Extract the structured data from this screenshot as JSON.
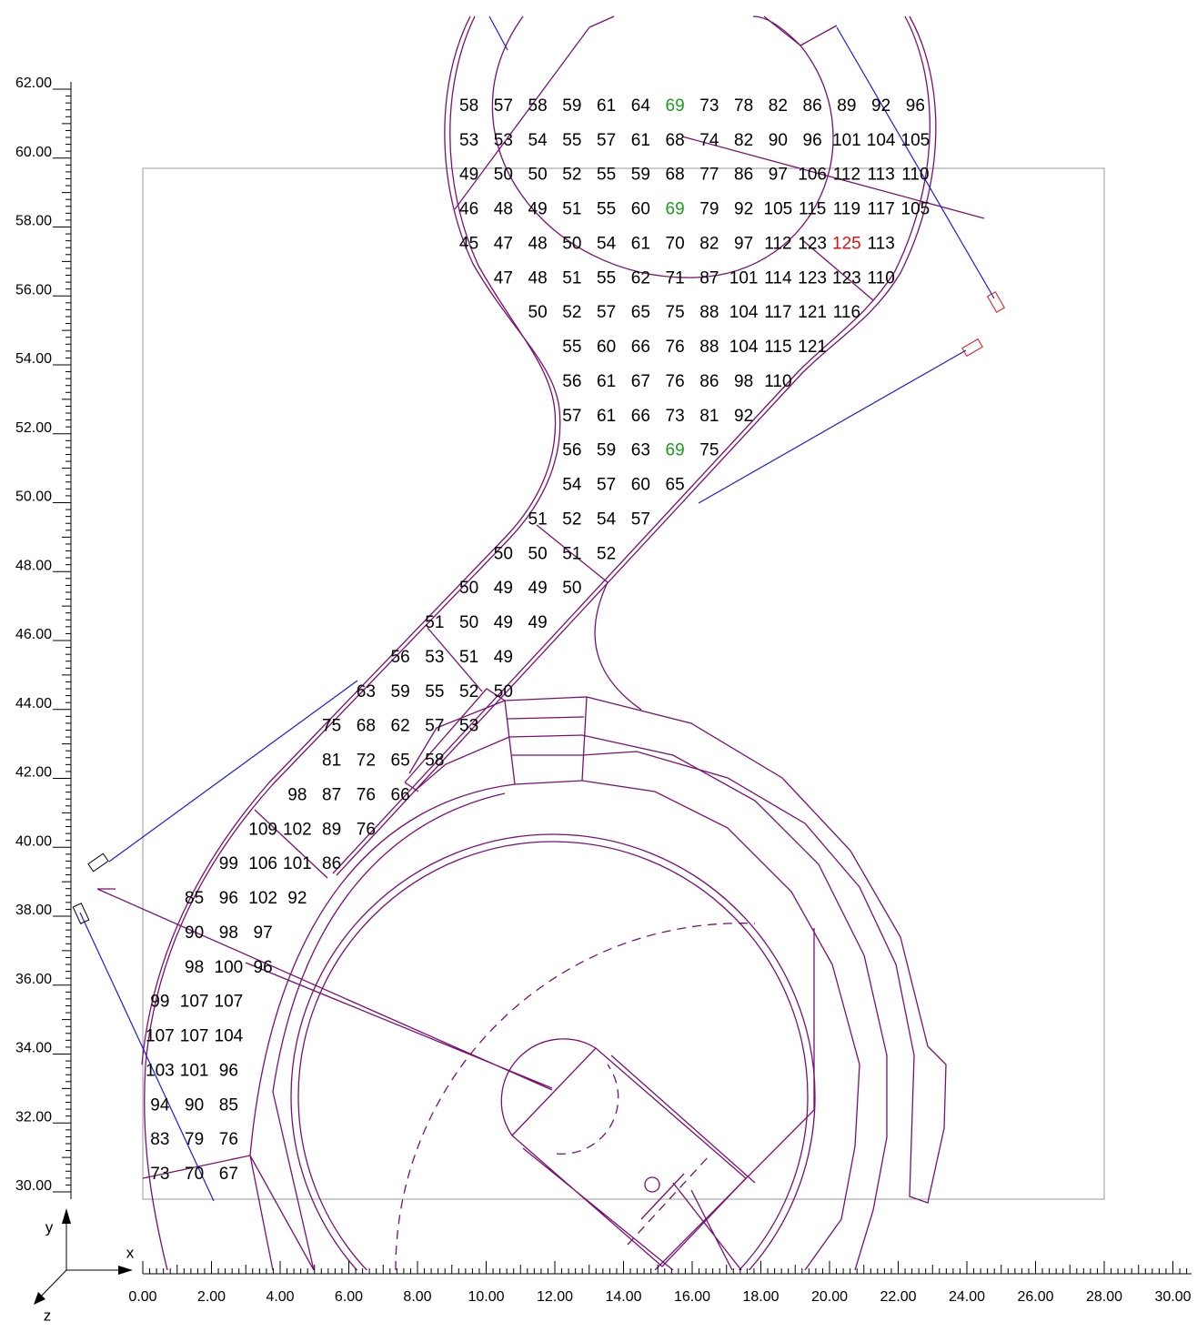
{
  "axes": {
    "x_label": "x",
    "y_label": "y",
    "z_label": "z",
    "x_ticks": [
      {
        "value": 0,
        "label": "0.00"
      },
      {
        "value": 2,
        "label": "2.00"
      },
      {
        "value": 4,
        "label": "4.00"
      },
      {
        "value": 6,
        "label": "6.00"
      },
      {
        "value": 8,
        "label": "8.00"
      },
      {
        "value": 10,
        "label": "10.00"
      },
      {
        "value": 12,
        "label": "12.00"
      },
      {
        "value": 14,
        "label": "14.00"
      },
      {
        "value": 16,
        "label": "16.00"
      },
      {
        "value": 18,
        "label": "18.00"
      },
      {
        "value": 20,
        "label": "20.00"
      },
      {
        "value": 22,
        "label": "22.00"
      },
      {
        "value": 24,
        "label": "24.00"
      },
      {
        "value": 26,
        "label": "26.00"
      },
      {
        "value": 28,
        "label": "28.00"
      },
      {
        "value": 30,
        "label": "30.00"
      }
    ],
    "y_ticks": [
      {
        "value": 30,
        "label": "30.00"
      },
      {
        "value": 32,
        "label": "32.00"
      },
      {
        "value": 34,
        "label": "34.00"
      },
      {
        "value": 36,
        "label": "36.00"
      },
      {
        "value": 38,
        "label": "38.00"
      },
      {
        "value": 40,
        "label": "40.00"
      },
      {
        "value": 42,
        "label": "42.00"
      },
      {
        "value": 44,
        "label": "44.00"
      },
      {
        "value": 46,
        "label": "46.00"
      },
      {
        "value": 48,
        "label": "48.00"
      },
      {
        "value": 50,
        "label": "50.00"
      },
      {
        "value": 52,
        "label": "52.00"
      },
      {
        "value": 54,
        "label": "54.00"
      },
      {
        "value": 56,
        "label": "56.00"
      },
      {
        "value": 58,
        "label": "58.00"
      },
      {
        "value": 60,
        "label": "60.00"
      },
      {
        "value": 62,
        "label": "62.00"
      }
    ]
  },
  "grid_values": {
    "rows": [
      {
        "y": 61.5,
        "x": [
          9.5,
          10.5,
          11.5,
          12.5,
          13.5,
          14.5,
          15.5,
          16.5,
          17.5,
          18.5,
          19.5,
          20.5,
          21.5,
          22.5
        ],
        "values": [
          58,
          57,
          58,
          59,
          61,
          64,
          69,
          73,
          78,
          82,
          86,
          89,
          92,
          96
        ]
      },
      {
        "y": 60.5,
        "x": [
          9.5,
          10.5,
          11.5,
          12.5,
          13.5,
          14.5,
          15.5,
          16.5,
          17.5,
          18.5,
          19.5,
          20.5,
          21.5,
          22.5
        ],
        "values": [
          53,
          53,
          54,
          55,
          57,
          61,
          68,
          74,
          82,
          90,
          96,
          101,
          104,
          105
        ]
      },
      {
        "y": 59.5,
        "x": [
          9.5,
          10.5,
          11.5,
          12.5,
          13.5,
          14.5,
          15.5,
          16.5,
          17.5,
          18.5,
          19.5,
          20.5,
          21.5,
          22.5
        ],
        "values": [
          49,
          50,
          50,
          52,
          55,
          59,
          68,
          77,
          86,
          97,
          106,
          112,
          113,
          110
        ]
      },
      {
        "y": 58.5,
        "x": [
          9.5,
          10.5,
          11.5,
          12.5,
          13.5,
          14.5,
          15.5,
          16.5,
          17.5,
          18.5,
          19.5,
          20.5,
          21.5,
          22.5
        ],
        "values": [
          46,
          48,
          49,
          51,
          55,
          60,
          69,
          79,
          92,
          105,
          115,
          119,
          117,
          105
        ]
      },
      {
        "y": 57.5,
        "x": [
          9.5,
          10.5,
          11.5,
          12.5,
          13.5,
          14.5,
          15.5,
          16.5,
          17.5,
          18.5,
          19.5,
          20.5,
          21.5
        ],
        "values": [
          45,
          47,
          48,
          50,
          54,
          61,
          70,
          82,
          97,
          112,
          123,
          125,
          113
        ]
      },
      {
        "y": 56.5,
        "x": [
          10.5,
          11.5,
          12.5,
          13.5,
          14.5,
          15.5,
          16.5,
          17.5,
          18.5,
          19.5,
          20.5,
          21.5
        ],
        "values": [
          47,
          48,
          51,
          55,
          62,
          71,
          87,
          101,
          114,
          123,
          123,
          110
        ]
      },
      {
        "y": 55.5,
        "x": [
          11.5,
          12.5,
          13.5,
          14.5,
          15.5,
          16.5,
          17.5,
          18.5,
          19.5,
          20.5
        ],
        "values": [
          50,
          52,
          57,
          65,
          75,
          88,
          104,
          117,
          121,
          116
        ]
      },
      {
        "y": 54.5,
        "x": [
          12.5,
          13.5,
          14.5,
          15.5,
          16.5,
          17.5,
          18.5,
          19.5
        ],
        "values": [
          55,
          60,
          66,
          76,
          88,
          104,
          115,
          121
        ]
      },
      {
        "y": 53.5,
        "x": [
          12.5,
          13.5,
          14.5,
          15.5,
          16.5,
          17.5,
          18.5
        ],
        "values": [
          56,
          61,
          67,
          76,
          86,
          98,
          110
        ]
      },
      {
        "y": 52.5,
        "x": [
          12.5,
          13.5,
          14.5,
          15.5,
          16.5,
          17.5
        ],
        "values": [
          57,
          61,
          66,
          73,
          81,
          92
        ]
      },
      {
        "y": 51.5,
        "x": [
          12.5,
          13.5,
          14.5,
          15.5,
          16.5
        ],
        "values": [
          56,
          59,
          63,
          69,
          75
        ]
      },
      {
        "y": 50.5,
        "x": [
          12.5,
          13.5,
          14.5,
          15.5
        ],
        "values": [
          54,
          57,
          60,
          65
        ]
      },
      {
        "y": 49.5,
        "x": [
          11.5,
          12.5,
          13.5,
          14.5
        ],
        "values": [
          51,
          52,
          54,
          57
        ]
      },
      {
        "y": 48.5,
        "x": [
          10.5,
          11.5,
          12.5,
          13.5
        ],
        "values": [
          50,
          50,
          51,
          52
        ]
      },
      {
        "y": 47.5,
        "x": [
          9.5,
          10.5,
          11.5,
          12.5
        ],
        "values": [
          50,
          49,
          49,
          50
        ]
      },
      {
        "y": 46.5,
        "x": [
          8.5,
          9.5,
          10.5,
          11.5
        ],
        "values": [
          51,
          50,
          49,
          49
        ]
      },
      {
        "y": 45.5,
        "x": [
          7.5,
          8.5,
          9.5,
          10.5
        ],
        "values": [
          56,
          53,
          51,
          49
        ]
      },
      {
        "y": 44.5,
        "x": [
          6.5,
          7.5,
          8.5,
          9.5,
          10.5
        ],
        "values": [
          63,
          59,
          55,
          52,
          50
        ]
      },
      {
        "y": 43.5,
        "x": [
          5.5,
          6.5,
          7.5,
          8.5,
          9.5
        ],
        "values": [
          75,
          68,
          62,
          57,
          53
        ]
      },
      {
        "y": 42.5,
        "x": [
          5.5,
          6.5,
          7.5,
          8.5
        ],
        "values": [
          81,
          72,
          65,
          58
        ]
      },
      {
        "y": 41.5,
        "x": [
          4.5,
          5.5,
          6.5,
          7.5
        ],
        "values": [
          98,
          87,
          76,
          66
        ]
      },
      {
        "y": 40.5,
        "x": [
          3.5,
          4.5,
          5.5,
          6.5
        ],
        "values": [
          109,
          102,
          89,
          76
        ]
      },
      {
        "y": 39.5,
        "x": [
          2.5,
          3.5,
          4.5,
          5.5
        ],
        "values": [
          99,
          106,
          101,
          86
        ]
      },
      {
        "y": 38.5,
        "x": [
          1.5,
          2.5,
          3.5,
          4.5
        ],
        "values": [
          85,
          96,
          102,
          92
        ]
      },
      {
        "y": 37.5,
        "x": [
          1.5,
          2.5,
          3.5
        ],
        "values": [
          90,
          98,
          97
        ]
      },
      {
        "y": 36.5,
        "x": [
          1.5,
          2.5,
          3.5
        ],
        "values": [
          98,
          100,
          96
        ]
      },
      {
        "y": 35.5,
        "x": [
          0.5,
          1.5,
          2.5
        ],
        "values": [
          99,
          107,
          107
        ]
      },
      {
        "y": 34.5,
        "x": [
          0.5,
          1.5,
          2.5
        ],
        "values": [
          107,
          107,
          104
        ]
      },
      {
        "y": 33.5,
        "x": [
          0.5,
          1.5,
          2.5
        ],
        "values": [
          103,
          101,
          96
        ]
      },
      {
        "y": 32.5,
        "x": [
          0.5,
          1.5,
          2.5
        ],
        "values": [
          94,
          90,
          85
        ]
      },
      {
        "y": 31.5,
        "x": [
          0.5,
          1.5,
          2.5
        ],
        "values": [
          83,
          79,
          76
        ]
      },
      {
        "y": 30.5,
        "x": [
          0.5,
          1.5,
          2.5
        ],
        "values": [
          73,
          70,
          67
        ]
      }
    ],
    "color": "#000000",
    "highlights": [
      {
        "row": 0,
        "col": 6,
        "color": "#1a9e1a"
      },
      {
        "row": 3,
        "col": 6,
        "color": "#1a9e1a"
      },
      {
        "row": 10,
        "col": 3,
        "color": "#1a9e1a"
      },
      {
        "row": 4,
        "col": 11,
        "color": "#e01010"
      }
    ]
  }
}
